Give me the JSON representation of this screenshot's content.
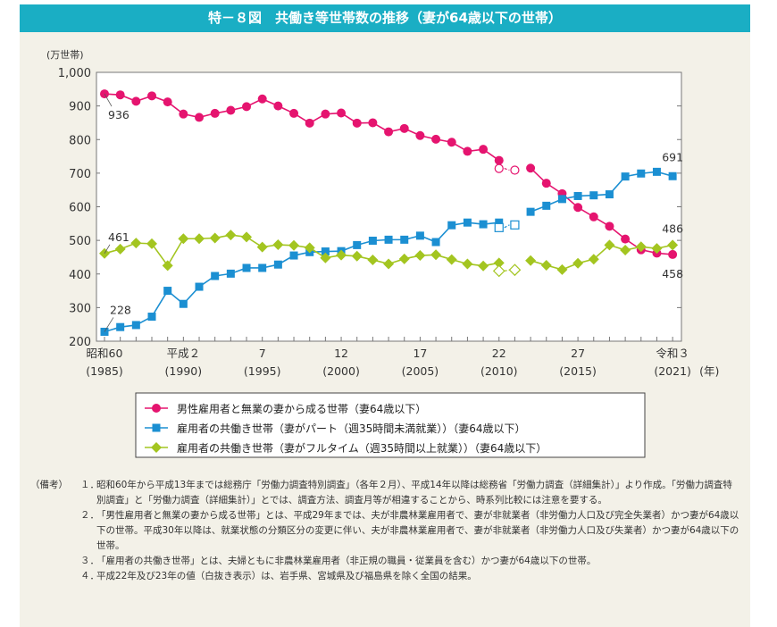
{
  "title": "特－８図　共働き等世帯数の推移（妻が64歳以下の世帯）",
  "chart_data": {
    "type": "line",
    "ylabel": "(万世帯)",
    "ylim": [
      200,
      1000
    ],
    "yticks": [
      "200",
      "300",
      "400",
      "500",
      "600",
      "700",
      "800",
      "900",
      "1,000"
    ],
    "x": [
      1985,
      1986,
      1987,
      1988,
      1989,
      1990,
      1991,
      1992,
      1993,
      1994,
      1995,
      1996,
      1997,
      1998,
      1999,
      2000,
      2001,
      2002,
      2003,
      2004,
      2005,
      2006,
      2007,
      2008,
      2009,
      2010,
      2011,
      2012,
      2013,
      2014,
      2015,
      2016,
      2017,
      2018,
      2019,
      2020,
      2021
    ],
    "xticks": [
      {
        "year": 1985,
        "era": "昭和60",
        "ad": "(1985)"
      },
      {
        "year": 1990,
        "era": "平成２",
        "ad": "(1990)"
      },
      {
        "year": 1995,
        "era": "7",
        "ad": "(1995)"
      },
      {
        "year": 2000,
        "era": "12",
        "ad": "(2000)"
      },
      {
        "year": 2005,
        "era": "17",
        "ad": "(2005)"
      },
      {
        "year": 2010,
        "era": "22",
        "ad": "(2010)"
      },
      {
        "year": 2015,
        "era": "27",
        "ad": "(2015)"
      },
      {
        "year": 2021,
        "era": "令和３",
        "ad": "(2021)"
      }
    ],
    "xunit": "(年)",
    "grid": false,
    "legend_placement": "bottom",
    "series": [
      {
        "name": "男性雇用者と無業の妻から成る世帯（妻64歳以下）",
        "color": "#e5146f",
        "marker": "circle",
        "values": [
          936,
          933,
          914,
          930,
          912,
          876,
          866,
          878,
          887,
          898,
          921,
          900,
          878,
          849,
          876,
          879,
          849,
          850,
          823,
          833,
          812,
          801,
          792,
          765,
          771,
          738,
          null,
          715,
          670,
          639,
          598,
          570,
          542,
          504,
          472,
          462,
          458
        ],
        "hollow": {
          "2010": 714,
          "2011": 709
        },
        "labels": {
          "1985": "936",
          "2021": "458"
        }
      },
      {
        "name": "雇用者の共働き世帯（妻がパート（週35時間未満就業））（妻64歳以下）",
        "color": "#1b8fd2",
        "marker": "square",
        "values": [
          228,
          242,
          248,
          273,
          350,
          311,
          362,
          394,
          401,
          418,
          418,
          428,
          455,
          465,
          467,
          468,
          486,
          499,
          502,
          502,
          514,
          495,
          545,
          553,
          548,
          553,
          null,
          585,
          603,
          623,
          632,
          634,
          637,
          690,
          699,
          704,
          691
        ],
        "hollow": {
          "2010": 538,
          "2011": 546
        },
        "labels": {
          "1985": "228",
          "2021": "691"
        }
      },
      {
        "name": "雇用者の共働き世帯（妻がフルタイム（週35時間以上就業））（妻64歳以下）",
        "color": "#a3c520",
        "marker": "diamond",
        "values": [
          461,
          474,
          492,
          490,
          425,
          505,
          505,
          507,
          516,
          510,
          480,
          487,
          485,
          478,
          448,
          456,
          453,
          442,
          430,
          445,
          455,
          457,
          443,
          430,
          424,
          433,
          null,
          440,
          426,
          413,
          432,
          444,
          486,
          471,
          481,
          476,
          486
        ],
        "hollow": {
          "2010": 409,
          "2011": 412
        },
        "labels": {
          "1985": "461",
          "2021": "486"
        }
      }
    ]
  },
  "notes": {
    "label": "（備考）",
    "items": [
      {
        "num": "１．",
        "text": "昭和60年から平成13年までは総務庁「労働力調査特別調査」（各年２月）、平成14年以降は総務省「労働力調査（詳細集計）」より作成。「労働力調査特別調査」と「労働力調査（詳細集計）」とでは、調査方法、調査月等が相違することから、時系列比較には注意を要する。"
      },
      {
        "num": "２．",
        "text": "「男性雇用者と無業の妻から成る世帯」とは、平成29年までは、夫が非農林業雇用者で、妻が非就業者（非労働力人口及び完全失業者）かつ妻が64歳以下の世帯。平成30年以降は、就業状態の分類区分の変更に伴い、夫が非農林業雇用者で、妻が非就業者（非労働力人口及び失業者）かつ妻が64歳以下の世帯。"
      },
      {
        "num": "３．",
        "text": "「雇用者の共働き世帯」とは、夫婦ともに非農林業雇用者（非正規の職員・従業員を含む）かつ妻が64歳以下の世帯。"
      },
      {
        "num": "４．",
        "text": "平成22年及び23年の値（白抜き表示）は、岩手県、宮城県及び福島県を除く全国の結果。"
      }
    ]
  }
}
